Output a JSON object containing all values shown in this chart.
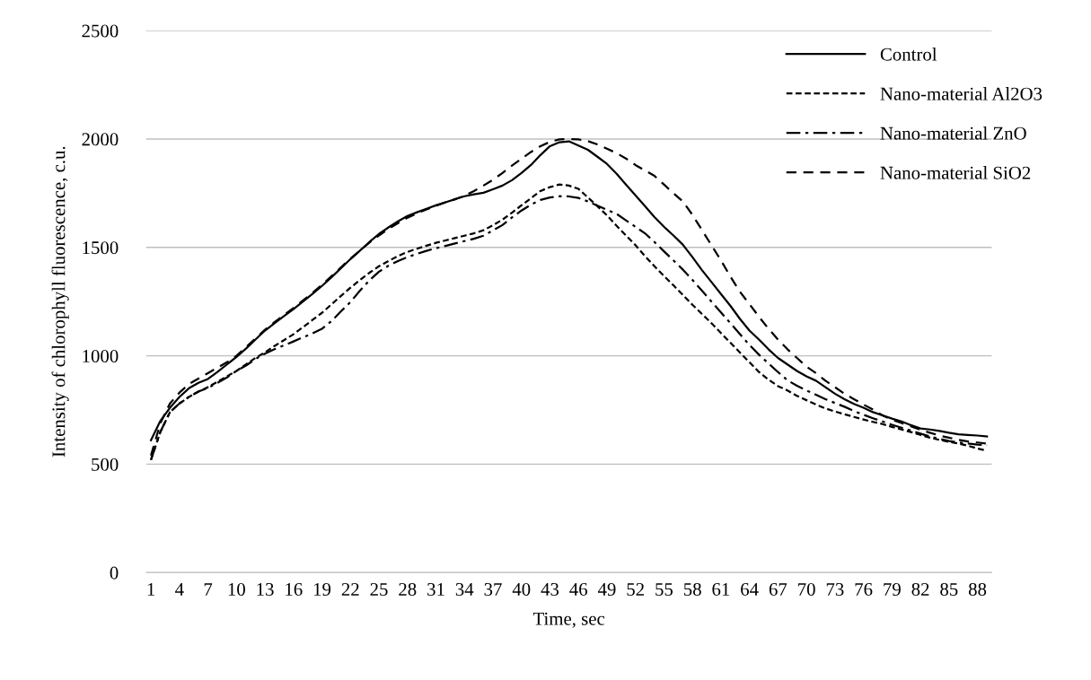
{
  "chart_data": {
    "type": "line",
    "xlabel": "Time, sec",
    "ylabel": "Intensity of chlorophyll fluorescence, c.u.",
    "categories": [
      "1",
      null,
      null,
      "4",
      null,
      null,
      "7",
      null,
      null,
      "10",
      null,
      null,
      "13",
      null,
      null,
      "16",
      null,
      null,
      "19",
      null,
      null,
      "22",
      null,
      null,
      "25",
      null,
      null,
      "28",
      null,
      null,
      "31",
      null,
      null,
      "34",
      null,
      null,
      "37",
      null,
      null,
      "40",
      null,
      null,
      "43",
      null,
      null,
      "46",
      null,
      null,
      "49",
      null,
      null,
      "52",
      null,
      null,
      "55",
      null,
      null,
      "58",
      null,
      null,
      "61",
      null,
      null,
      "64",
      null,
      null,
      "67",
      null,
      null,
      "70",
      null,
      null,
      "73",
      null,
      null,
      "76",
      null,
      null,
      "79",
      null,
      null,
      "82",
      null,
      null,
      "85",
      null,
      null,
      "88",
      null
    ],
    "ylim": [
      0,
      2500
    ],
    "yticks": [
      0,
      500,
      1000,
      1500,
      2000,
      2500
    ],
    "grid": "y",
    "legend": "top right",
    "marker": "none",
    "series": [
      {
        "name": "Control",
        "color": "#000000",
        "line_style": "solid",
        "values": [
          610,
          700,
          760,
          810,
          850,
          875,
          893,
          925,
          960,
          995,
          1033,
          1075,
          1116,
          1150,
          1183,
          1215,
          1250,
          1285,
          1322,
          1362,
          1404,
          1446,
          1485,
          1525,
          1562,
          1592,
          1620,
          1645,
          1662,
          1678,
          1694,
          1708,
          1722,
          1736,
          1745,
          1752,
          1768,
          1785,
          1810,
          1843,
          1880,
          1926,
          1967,
          1985,
          1989,
          1970,
          1950,
          1918,
          1885,
          1840,
          1790,
          1740,
          1690,
          1640,
          1595,
          1555,
          1512,
          1455,
          1395,
          1340,
          1285,
          1230,
          1170,
          1116,
          1075,
          1030,
          990,
          960,
          930,
          905,
          885,
          855,
          825,
          800,
          778,
          760,
          740,
          725,
          710,
          697,
          680,
          665,
          660,
          653,
          645,
          638,
          635,
          632,
          628
        ]
      },
      {
        "name": "Nano-material Al2O3",
        "color": "#000000",
        "line_style": "dotted",
        "values": [
          520,
          650,
          740,
          780,
          810,
          835,
          855,
          880,
          905,
          930,
          960,
          990,
          1016,
          1045,
          1072,
          1099,
          1132,
          1165,
          1198,
          1237,
          1276,
          1314,
          1350,
          1383,
          1413,
          1437,
          1460,
          1479,
          1494,
          1508,
          1521,
          1532,
          1543,
          1554,
          1565,
          1579,
          1602,
          1628,
          1660,
          1694,
          1727,
          1760,
          1778,
          1790,
          1785,
          1770,
          1730,
          1690,
          1648,
          1600,
          1555,
          1510,
          1460,
          1413,
          1368,
          1325,
          1280,
          1235,
          1193,
          1150,
          1105,
          1060,
          1015,
          970,
          925,
          890,
          860,
          840,
          815,
          795,
          775,
          757,
          743,
          730,
          718,
          706,
          695,
          685,
          672,
          660,
          648,
          635,
          622,
          612,
          603,
          595,
          585,
          572,
          562
        ]
      },
      {
        "name": "Nano-material ZnO",
        "color": "#000000",
        "line_style": "dashdot",
        "values": [
          520,
          650,
          740,
          780,
          810,
          835,
          852,
          875,
          900,
          930,
          955,
          985,
          1010,
          1030,
          1048,
          1066,
          1085,
          1103,
          1124,
          1160,
          1205,
          1248,
          1300,
          1348,
          1388,
          1415,
          1437,
          1455,
          1470,
          1484,
          1496,
          1507,
          1518,
          1529,
          1540,
          1554,
          1578,
          1603,
          1638,
          1670,
          1697,
          1719,
          1730,
          1736,
          1735,
          1728,
          1712,
          1692,
          1673,
          1655,
          1625,
          1595,
          1565,
          1525,
          1482,
          1440,
          1397,
          1350,
          1300,
          1250,
          1200,
          1150,
          1100,
          1050,
          1005,
          965,
          925,
          887,
          862,
          840,
          820,
          800,
          782,
          765,
          745,
          728,
          712,
          697,
          682,
          668,
          655,
          641,
          628,
          617,
          607,
          600,
          595,
          590,
          587
        ]
      },
      {
        "name": "Nano-material SiO2",
        "color": "#000000",
        "line_style": "dashed",
        "values": [
          540,
          690,
          780,
          830,
          870,
          895,
          920,
          945,
          970,
          1000,
          1040,
          1080,
          1120,
          1155,
          1188,
          1220,
          1255,
          1290,
          1327,
          1367,
          1408,
          1448,
          1485,
          1522,
          1555,
          1585,
          1612,
          1637,
          1657,
          1675,
          1692,
          1708,
          1722,
          1738,
          1760,
          1785,
          1812,
          1843,
          1877,
          1909,
          1940,
          1967,
          1987,
          1998,
          2000,
          1998,
          1990,
          1975,
          1955,
          1935,
          1910,
          1880,
          1855,
          1830,
          1790,
          1750,
          1711,
          1650,
          1580,
          1510,
          1440,
          1365,
          1295,
          1238,
          1180,
          1125,
          1075,
          1030,
          990,
          950,
          920,
          885,
          855,
          825,
          800,
          775,
          752,
          725,
          705,
          690,
          675,
          658,
          645,
          632,
          622,
          612,
          605,
          600,
          595
        ]
      }
    ]
  }
}
